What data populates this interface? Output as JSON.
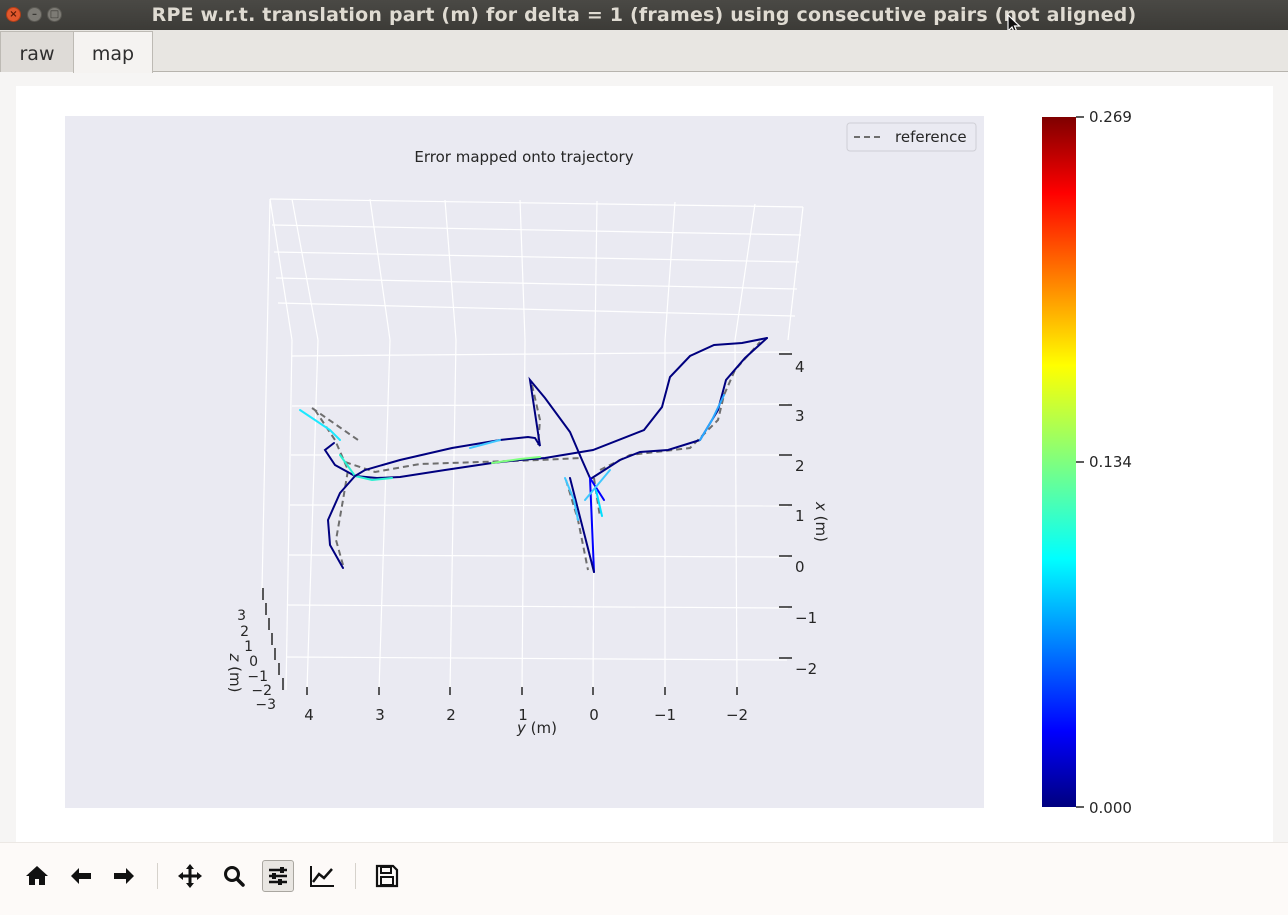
{
  "window": {
    "title": "RPE w.r.t. translation part (m) for delta = 1 (frames) using consecutive pairs (not aligned)"
  },
  "tabs": [
    {
      "label": "raw"
    },
    {
      "label": "map"
    }
  ],
  "active_tab": "map",
  "plot": {
    "title": "Error mapped onto trajectory",
    "legend": "reference",
    "xlabel_pre": "y",
    "xlabel_post": " (m)",
    "ylabel_pre": "x",
    "ylabel_post": " (m)",
    "zlabel_pre": "z",
    "zlabel_post": " (m)",
    "y_ticks": [
      "4",
      "3",
      "2",
      "1",
      "0",
      "−1",
      "−2"
    ],
    "x_ticks": [
      "4",
      "3",
      "2",
      "1",
      "0",
      "−1",
      "−2"
    ],
    "z_ticks": [
      "3",
      "2",
      "1",
      "0",
      "−1",
      "−2",
      "−3"
    ],
    "colorbar": {
      "max": "0.269",
      "mid": "0.134",
      "min": "0.000",
      "colormap": "jet"
    }
  },
  "chart_data": {
    "type": "line",
    "title": "Error mapped onto trajectory",
    "xlabel": "y (m)",
    "ylabel": "x (m)",
    "zlabel": "z (m)",
    "series": [
      {
        "name": "reference"
      }
    ],
    "colorbar_range": [
      0.0,
      0.269
    ],
    "colorbar_ticks": [
      0.0,
      0.134,
      0.269
    ]
  },
  "toolbar": {
    "buttons": [
      {
        "icon": "home-icon"
      },
      {
        "icon": "back-arrow-icon"
      },
      {
        "icon": "forward-arrow-icon"
      },
      {
        "icon": "pan-icon"
      },
      {
        "icon": "zoom-icon"
      },
      {
        "icon": "configure-subplots-icon"
      },
      {
        "icon": "edit-axis-icon"
      },
      {
        "icon": "save-icon"
      }
    ]
  },
  "colors": {
    "plot_bg": "#eaeaf2",
    "titlebar": "#3c3b37",
    "close_button": "#e2582d"
  }
}
